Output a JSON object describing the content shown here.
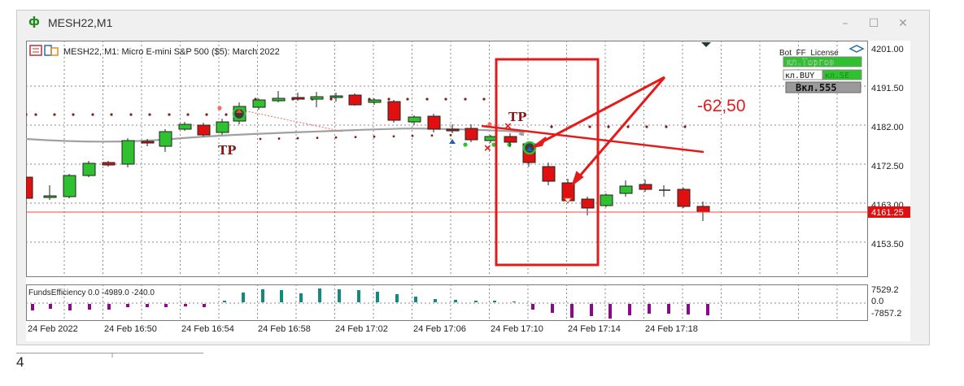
{
  "window": {
    "title": "MESH22,M1",
    "icon": "candlestick-chart-icon",
    "controls": [
      "–",
      "☐",
      "✕"
    ]
  },
  "chart": {
    "header": "MESH22, M1:  Micro E-mini S&P 500 ($5): March 2022",
    "price_axis": [
      "4201.00",
      "4191.50",
      "4182.00",
      "4172.50",
      "4163.00",
      "4153.50"
    ],
    "current_price": "4161.25",
    "time_axis": [
      "24 Feb 2022",
      "24 Feb 16:50",
      "24 Feb 16:54",
      "24 Feb 16:58",
      "24 Feb 17:02",
      "24 Feb 17:06",
      "24 Feb 17:10",
      "24 Feb 17:14",
      "24 Feb 17:18"
    ],
    "panel_buttons": {
      "license": "Bot_FF_License",
      "trade_on": "кл.Торгов",
      "buy_on": "кл.BUY",
      "sell_on": "кл.SE",
      "counter": "Вкл.555"
    },
    "tp_labels": [
      "TP",
      "TP"
    ],
    "annotation_value": "-62,50",
    "indicator": {
      "header": "FundsEfficiency 0.0 -4989.0 -240.0",
      "axis": [
        "7529.2",
        "0.0",
        "-7857.2"
      ]
    },
    "colors": {
      "bull": "#2fc12f",
      "bear": "#e01010",
      "annotation": "#e31b1b",
      "price_line": "#ff4040",
      "ma": "#a0a0a0",
      "indicator_pos": "#138a7e",
      "indicator_neg": "#8a0a8a"
    }
  },
  "footnote": "4"
}
